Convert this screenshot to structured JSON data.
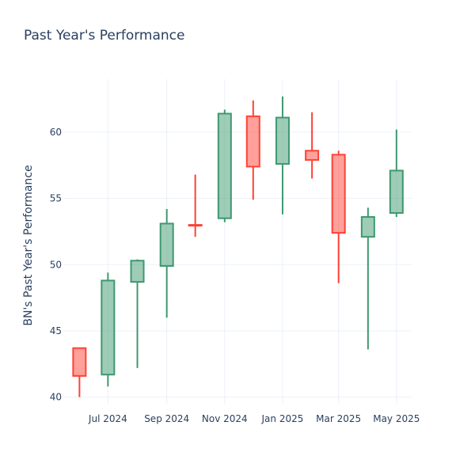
{
  "chart_data": {
    "type": "candlestick",
    "title": "Past Year's Performance",
    "xlabel": "",
    "ylabel": "BN's Past Year's Performance",
    "ylim": [
      39.5,
      64
    ],
    "yticks": [
      40,
      45,
      50,
      55,
      60
    ],
    "xticks": [
      {
        "date": "2024-07-01",
        "label": "Jul 2024"
      },
      {
        "date": "2024-09-01",
        "label": "Sep 2024"
      },
      {
        "date": "2024-11-01",
        "label": "Nov 2024"
      },
      {
        "date": "2025-01-01",
        "label": "Jan 2025"
      },
      {
        "date": "2025-03-01",
        "label": "Mar 2025"
      },
      {
        "date": "2025-05-01",
        "label": "May 2025"
      }
    ],
    "xrange": [
      "2024-05-15",
      "2025-05-17"
    ],
    "colors": {
      "increasing": "#3d9970",
      "decreasing": "#ff4136",
      "grid": "#ebf0f8",
      "text": "#2a3f5f"
    },
    "candles": [
      {
        "date": "2024-06-01",
        "open": 43.7,
        "high": 43.7,
        "low": 40.0,
        "close": 41.6
      },
      {
        "date": "2024-07-01",
        "open": 41.7,
        "high": 49.4,
        "low": 40.8,
        "close": 48.8
      },
      {
        "date": "2024-08-01",
        "open": 48.7,
        "high": 50.4,
        "low": 42.2,
        "close": 50.3
      },
      {
        "date": "2024-09-01",
        "open": 49.9,
        "high": 54.2,
        "low": 46.0,
        "close": 53.1
      },
      {
        "date": "2024-10-01",
        "open": 53.0,
        "high": 56.8,
        "low": 52.1,
        "close": 52.95
      },
      {
        "date": "2024-11-01",
        "open": 53.5,
        "high": 61.7,
        "low": 53.2,
        "close": 61.4
      },
      {
        "date": "2024-12-01",
        "open": 61.2,
        "high": 62.4,
        "low": 54.9,
        "close": 57.4
      },
      {
        "date": "2025-01-01",
        "open": 57.6,
        "high": 62.7,
        "low": 53.8,
        "close": 61.1
      },
      {
        "date": "2025-02-01",
        "open": 58.6,
        "high": 61.5,
        "low": 56.5,
        "close": 57.9
      },
      {
        "date": "2025-03-01",
        "open": 58.3,
        "high": 58.6,
        "low": 48.6,
        "close": 52.4
      },
      {
        "date": "2025-04-01",
        "open": 52.1,
        "high": 54.3,
        "low": 43.6,
        "close": 53.6
      },
      {
        "date": "2025-05-01",
        "open": 53.9,
        "high": 60.2,
        "low": 53.6,
        "close": 57.1
      }
    ]
  }
}
